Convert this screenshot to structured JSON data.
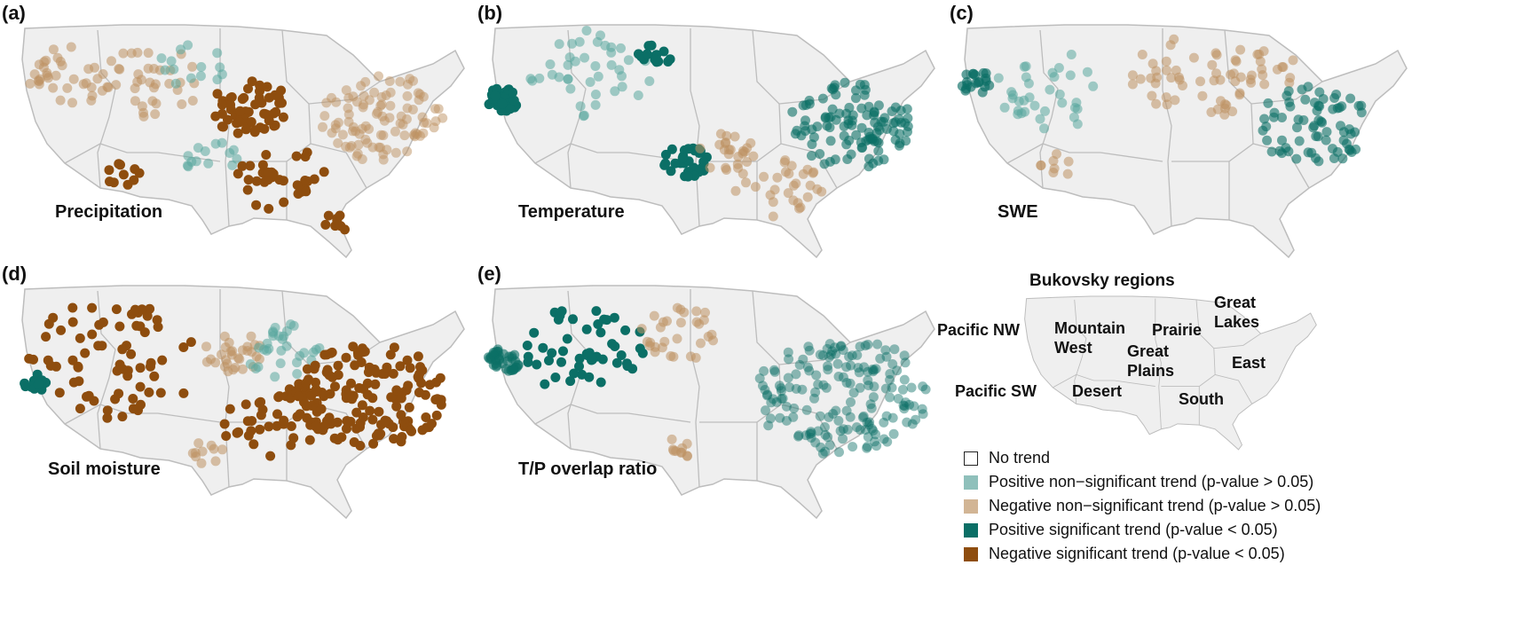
{
  "figure": {
    "panels": [
      {
        "id": "a",
        "tag": "(a)",
        "variable": "Precipitation"
      },
      {
        "id": "b",
        "tag": "(b)",
        "variable": "Temperature"
      },
      {
        "id": "c",
        "tag": "(c)",
        "variable": "SWE"
      },
      {
        "id": "d",
        "tag": "(d)",
        "variable": "Soil moisture"
      },
      {
        "id": "e",
        "tag": "(e)",
        "variable": "T/P overlap ratio"
      }
    ],
    "regions_map": {
      "title": "Bukovsky regions",
      "regions": [
        "Pacific NW",
        "Mountain West",
        "Prairie",
        "Great Lakes",
        "Great Plains",
        "East",
        "Pacific SW",
        "Desert",
        "South"
      ]
    },
    "legend": {
      "items": [
        {
          "label": "No trend",
          "color": "#ffffff",
          "border": "#222222"
        },
        {
          "label": "Positive non−significant trend (p-value > 0.05)",
          "color": "#8fc0bb"
        },
        {
          "label": "Negative non−significant trend (p-value > 0.05)",
          "color": "#d2b595"
        },
        {
          "label": "Positive significant trend (p-value < 0.05)",
          "color": "#0b6f66"
        },
        {
          "label": "Negative significant trend (p-value < 0.05)",
          "color": "#8e4d0e"
        }
      ]
    },
    "colors": {
      "land": "#efefef",
      "boundary": "#bdbdbd",
      "pos_ns": "#5aa79f",
      "neg_ns": "#bd9262",
      "pos_s": "#0b6f66",
      "neg_s": "#8e4d0e"
    }
  }
}
